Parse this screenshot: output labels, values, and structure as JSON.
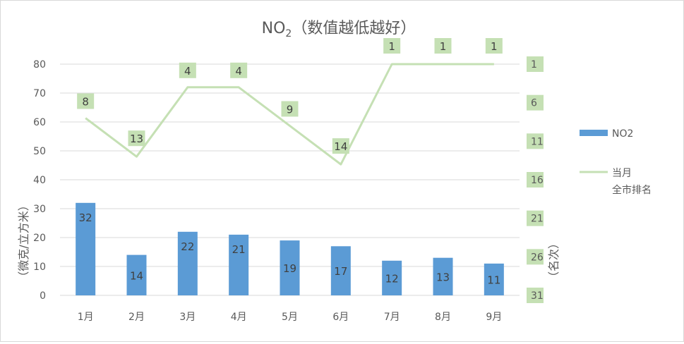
{
  "chart_data": {
    "type": "bar",
    "title": "NO",
    "title_subscript": "2",
    "title_suffix": "（数值越低越好）",
    "categories": [
      "1月",
      "2月",
      "3月",
      "4月",
      "5月",
      "6月",
      "7月",
      "8月",
      "9月"
    ],
    "ylabel": "（微克/立方米）",
    "y2label": "（名次）",
    "ylim": [
      0,
      80
    ],
    "yticks": [
      0,
      10,
      20,
      30,
      40,
      50,
      60,
      70,
      80
    ],
    "y2lim": [
      31,
      1
    ],
    "y2ticks": [
      1,
      6,
      11,
      16,
      21,
      26,
      31
    ],
    "grid": true,
    "legend_position": "right",
    "series": [
      {
        "name": "NO2",
        "type": "bar",
        "axis": "left",
        "color": "#5b9bd5",
        "values": [
          32,
          14,
          22,
          21,
          19,
          17,
          12,
          13,
          11
        ]
      },
      {
        "name": "当月\n全市排名",
        "legend_lines": [
          "当月",
          "全市排名"
        ],
        "type": "line",
        "axis": "right",
        "color": "#c5e0b4",
        "values": [
          8,
          13,
          4,
          4,
          9,
          14,
          1,
          1,
          1
        ]
      }
    ]
  }
}
